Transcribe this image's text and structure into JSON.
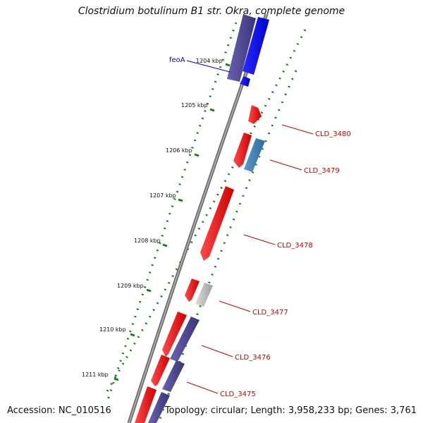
{
  "title": "Clostridium botulinum B1 str. Okra, complete genome",
  "accession": "Accession: NC_010516",
  "summary": "Topology: circular; Length: 3,958,233 bp; Genes: 3,761",
  "ticks": [
    "1204 kbp",
    "1205 kbp",
    "1206 kbp",
    "1207 kbp",
    "1208 kbp",
    "1209 kbp",
    "1210 kbp",
    "1211 kbp"
  ],
  "genes": [
    {
      "label": "feoA",
      "color": "#0000cc"
    },
    {
      "label": "CLD_3480",
      "color": "#cc0000"
    },
    {
      "label": "CLD_3479",
      "color": "#cc0000"
    },
    {
      "label": "CLD_3478",
      "color": "#cc0000"
    },
    {
      "label": "CLD_3477",
      "color": "#cc0000"
    },
    {
      "label": "CLD_3476",
      "color": "#cc0000"
    },
    {
      "label": "CLD_3475",
      "color": "#cc0000"
    }
  ],
  "colors": {
    "cds_red": "#ff0000",
    "cds_blue": "#0000ff",
    "cds_purple": "#4a4290",
    "cds_steelblue": "#4682b4",
    "cds_gray": "#bdbdbd",
    "backbone": "#777777",
    "tick_green": "#1a7d1a"
  }
}
